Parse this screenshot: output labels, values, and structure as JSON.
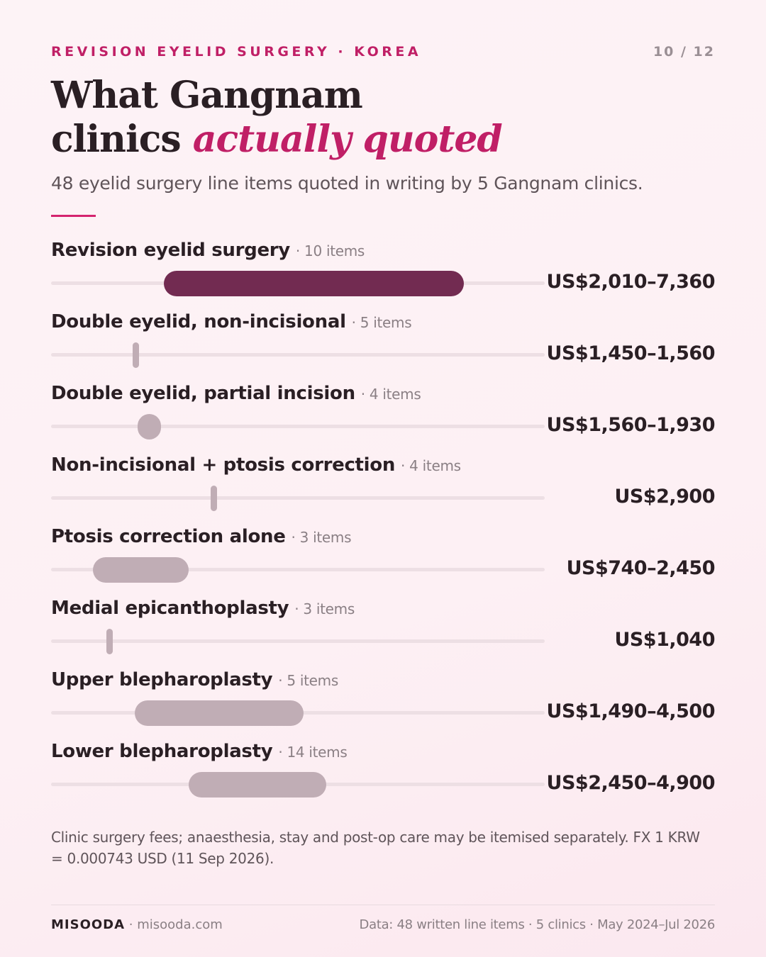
{
  "header": {
    "kicker": "REVISION EYELID SURGERY · KOREA",
    "page_indicator": "10 / 12"
  },
  "title": {
    "line1": "What Gangnam",
    "line2_plain": "clinics ",
    "line2_accent": "actually quoted"
  },
  "subtitle": "48 eyelid surgery line items quoted in writing by 5 Gangnam clinics.",
  "colors": {
    "accent": "#c01f66",
    "highlight_bar": "#722b51",
    "bar": "#c0adb5",
    "track": "#eddfe4"
  },
  "chart_data": {
    "type": "range",
    "unit": "USD",
    "xlim": [
      0,
      8800
    ],
    "categories": [
      {
        "label": "Revision eyelid surgery",
        "items_label": "· 10 items",
        "items": 10,
        "low": 2010,
        "high": 7360,
        "range_label": "US$2,010–7,360",
        "highlight": true
      },
      {
        "label": "Double eyelid, non-incisional",
        "items_label": "· 5 items",
        "items": 5,
        "low": 1450,
        "high": 1560,
        "range_label": "US$1,450–1,560",
        "highlight": false
      },
      {
        "label": "Double eyelid, partial incision",
        "items_label": "· 4 items",
        "items": 4,
        "low": 1560,
        "high": 1930,
        "range_label": "US$1,560–1,930",
        "highlight": false
      },
      {
        "label": "Non-incisional + ptosis correction",
        "items_label": "· 4 items",
        "items": 4,
        "low": 2900,
        "high": 2900,
        "range_label": "US$2,900",
        "highlight": false
      },
      {
        "label": "Ptosis correction alone",
        "items_label": "· 3 items",
        "items": 3,
        "low": 740,
        "high": 2450,
        "range_label": "US$740–2,450",
        "highlight": false
      },
      {
        "label": "Medial epicanthoplasty",
        "items_label": "· 3 items",
        "items": 3,
        "low": 1040,
        "high": 1040,
        "range_label": "US$1,040",
        "highlight": false
      },
      {
        "label": "Upper blepharoplasty",
        "items_label": "· 5 items",
        "items": 5,
        "low": 1490,
        "high": 4500,
        "range_label": "US$1,490–4,500",
        "highlight": false
      },
      {
        "label": "Lower blepharoplasty",
        "items_label": "· 14 items",
        "items": 14,
        "low": 2450,
        "high": 4900,
        "range_label": "US$2,450–4,900",
        "highlight": false
      }
    ]
  },
  "footnote": "Clinic surgery fees; anaesthesia, stay and post-op care may be itemised separately. FX 1 KRW = 0.000743 USD (11 Sep 2026).",
  "footer": {
    "brand": "MISOODA",
    "site": "· misooda.com",
    "source": "Data: 48 written line items · 5 clinics · May 2024–Jul 2026"
  }
}
